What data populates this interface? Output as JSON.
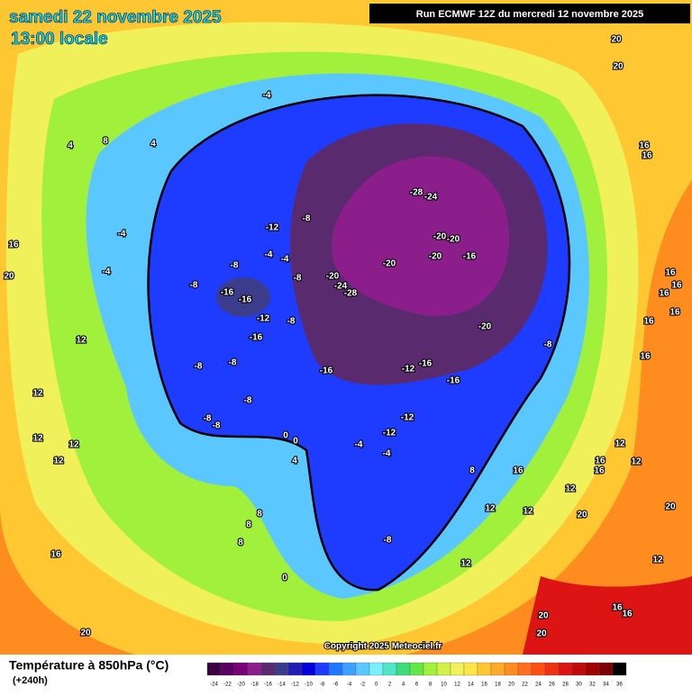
{
  "header": {
    "date": "samedi 22 novembre 2025",
    "time": "13:00 locale",
    "run": "Run ECMWF 12Z du mercredi 12 novembre 2025"
  },
  "copyright": "Copyright 2025 Meteociel.fr",
  "legend": {
    "title": "Température à 850hPa (°C)",
    "lead": "(+240h)",
    "ticks": [
      -24,
      -22,
      -20,
      -18,
      -16,
      -14,
      -12,
      -10,
      -8,
      -6,
      -4,
      -2,
      0,
      2,
      4,
      6,
      8,
      10,
      12,
      14,
      16,
      18,
      20,
      22,
      24,
      26,
      28,
      30,
      32,
      34,
      36
    ],
    "colors": [
      "#3c0040",
      "#5a0060",
      "#780078",
      "#8c1e8c",
      "#5a2a6e",
      "#3c3c8c",
      "#1e1eb4",
      "#0000dc",
      "#1e3cff",
      "#1e78ff",
      "#3ca0ff",
      "#5ac8ff",
      "#78f0ff",
      "#50e6c8",
      "#3cdc78",
      "#64e646",
      "#a0f03c",
      "#d2f046",
      "#f0f05a",
      "#ffe646",
      "#ffc832",
      "#ffaa28",
      "#ff8c1e",
      "#ff6e1e",
      "#ff5014",
      "#f03214",
      "#dc1414",
      "#be0a0a",
      "#a00000",
      "#780000",
      "#000000"
    ]
  },
  "contour_labels": [
    -4,
    4,
    8,
    4,
    -12,
    -8,
    -4,
    16,
    20,
    -4,
    -8,
    -4,
    -4,
    -8,
    -8,
    -16,
    -16,
    -12,
    -8,
    -16,
    -8,
    -8,
    -8,
    -8,
    -8,
    -28,
    -24,
    -20,
    -20,
    -20,
    -20,
    -16,
    -20,
    -24,
    -28,
    -20,
    -8,
    -16,
    -12,
    -16,
    -16,
    -12,
    -12,
    -4,
    -4,
    -8,
    0,
    0,
    4,
    8,
    8,
    8,
    0,
    16,
    20,
    12,
    12,
    12,
    12,
    12,
    20,
    20,
    16,
    16,
    16,
    16,
    16,
    16,
    16,
    16,
    12,
    12,
    16,
    16,
    16,
    8,
    12,
    12,
    12,
    20,
    20,
    12,
    12,
    20,
    20,
    16,
    16
  ]
}
